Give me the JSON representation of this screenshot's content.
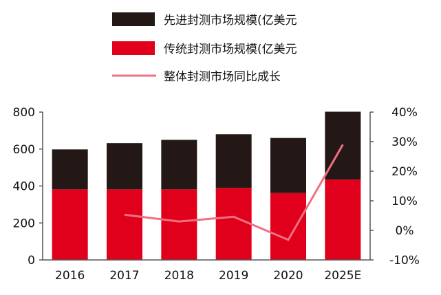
{
  "chart_data": {
    "type": "bar",
    "stacked": true,
    "categories": [
      "2016",
      "2017",
      "2018",
      "2019",
      "2020",
      "2025E"
    ],
    "series": [
      {
        "name": "传统封测市场规模(亿美元",
        "kind": "bar",
        "axis": "left",
        "color": "#e0001b",
        "values": [
          382,
          382,
          382,
          390,
          362,
          435
        ]
      },
      {
        "name": "先进封测市场规模(亿美元",
        "kind": "bar",
        "axis": "left",
        "color": "#231815",
        "values": [
          216,
          250,
          268,
          290,
          298,
          367
        ]
      },
      {
        "name": "整体封测市场同比成长",
        "kind": "line",
        "axis": "right",
        "color": "#f07080",
        "values": [
          null,
          5.3,
          3.0,
          4.6,
          -3.2,
          29.0
        ]
      }
    ],
    "left_axis": {
      "ylim": [
        0,
        800
      ],
      "ticks": [
        "0",
        "200",
        "400",
        "600",
        "800"
      ]
    },
    "right_axis": {
      "ylim": [
        -10,
        40
      ],
      "ticks": [
        "-10%",
        "0%",
        "10%",
        "20%",
        "30%",
        "40%"
      ]
    },
    "legend_position": "top-right",
    "grid": false
  }
}
